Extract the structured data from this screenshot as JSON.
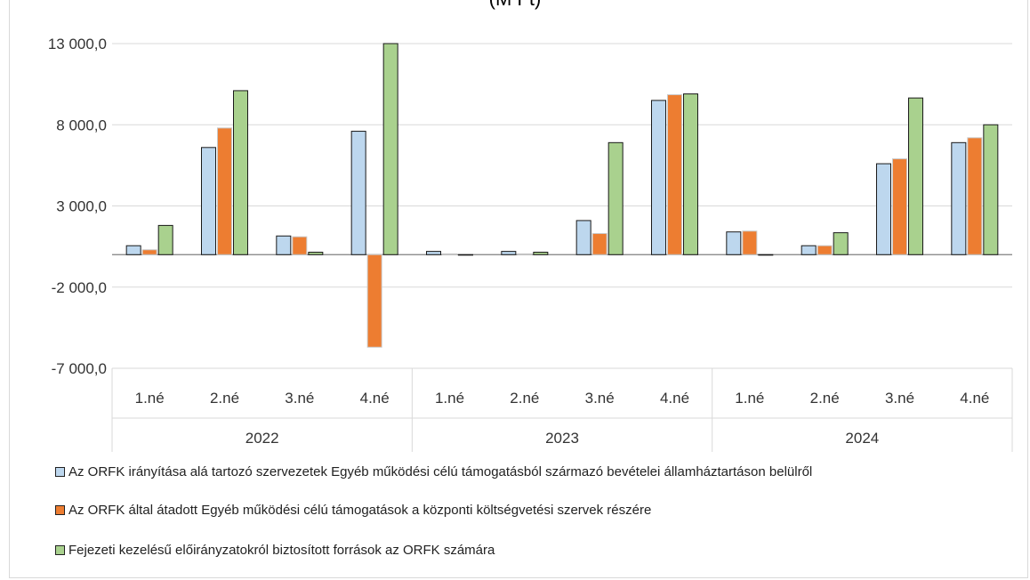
{
  "chart_data": {
    "type": "bar",
    "title": "(M Ft)",
    "groups": [
      "2022",
      "2023",
      "2024"
    ],
    "categories": [
      "1.né",
      "2.né",
      "3.né",
      "4.né",
      "1.né",
      "2.né",
      "3.né",
      "4.né",
      "1.né",
      "2.né",
      "3.né",
      "4.né"
    ],
    "ylim": [
      -7000,
      13000
    ],
    "yticks": [
      -7000,
      -2000,
      3000,
      8000,
      13000
    ],
    "ytick_labels": [
      "-7 000,0",
      "-2 000,0",
      "3 000,0",
      "8 000,0",
      "13 000,0"
    ],
    "grid": true,
    "legend_position": "bottom",
    "series": [
      {
        "name": "Az ORFK irányítása alá tartozó szervezetek Egyéb működési célú támogatásból származó bevételei államháztartáson belülről",
        "color": "#bdd7ee",
        "values": [
          550,
          6600,
          1150,
          7600,
          200,
          200,
          2100,
          9500,
          1400,
          550,
          5600,
          6900
        ]
      },
      {
        "name": "Az ORFK által átadott Egyéb működési célú támogatások a központi költségvetési szervek részére",
        "color": "#ed7d31",
        "values": [
          300,
          7800,
          1100,
          -5700,
          50,
          50,
          1300,
          9850,
          1450,
          550,
          5900,
          7200
        ]
      },
      {
        "name": "Fejezeti kezelésű előirányzatokról biztosított források az  ORFK számára",
        "color": "#a9d18e",
        "values": [
          1800,
          10100,
          150,
          13000,
          0,
          150,
          6900,
          9900,
          0,
          1350,
          9650,
          8000
        ]
      }
    ]
  }
}
